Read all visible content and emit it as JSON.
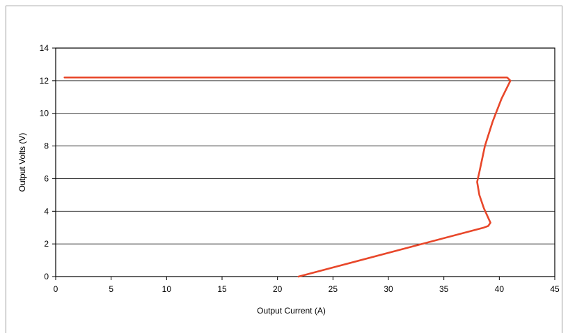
{
  "chart_data": {
    "type": "line",
    "title": "",
    "xlabel": "Output Current (A)",
    "ylabel": "Output Volts (V)",
    "xlim": [
      0,
      45
    ],
    "ylim": [
      0,
      14
    ],
    "xticks": [
      0,
      5,
      10,
      15,
      20,
      25,
      30,
      35,
      40,
      45
    ],
    "yticks": [
      0,
      2,
      4,
      6,
      8,
      10,
      12,
      14
    ],
    "grid": "horizontal",
    "legend": "none",
    "series": [
      {
        "color": "#e8472a",
        "points": [
          [
            0.8,
            12.2
          ],
          [
            40.7,
            12.2
          ],
          [
            41.0,
            12.0
          ],
          [
            40.2,
            10.9
          ],
          [
            39.4,
            9.5
          ],
          [
            38.7,
            8.0
          ],
          [
            38.2,
            6.4
          ],
          [
            38.0,
            5.8
          ],
          [
            38.2,
            5.0
          ],
          [
            38.6,
            4.2
          ],
          [
            39.0,
            3.6
          ],
          [
            39.2,
            3.3
          ],
          [
            39.0,
            3.1
          ],
          [
            38.6,
            3.0
          ],
          [
            21.9,
            0.0
          ]
        ]
      }
    ]
  }
}
